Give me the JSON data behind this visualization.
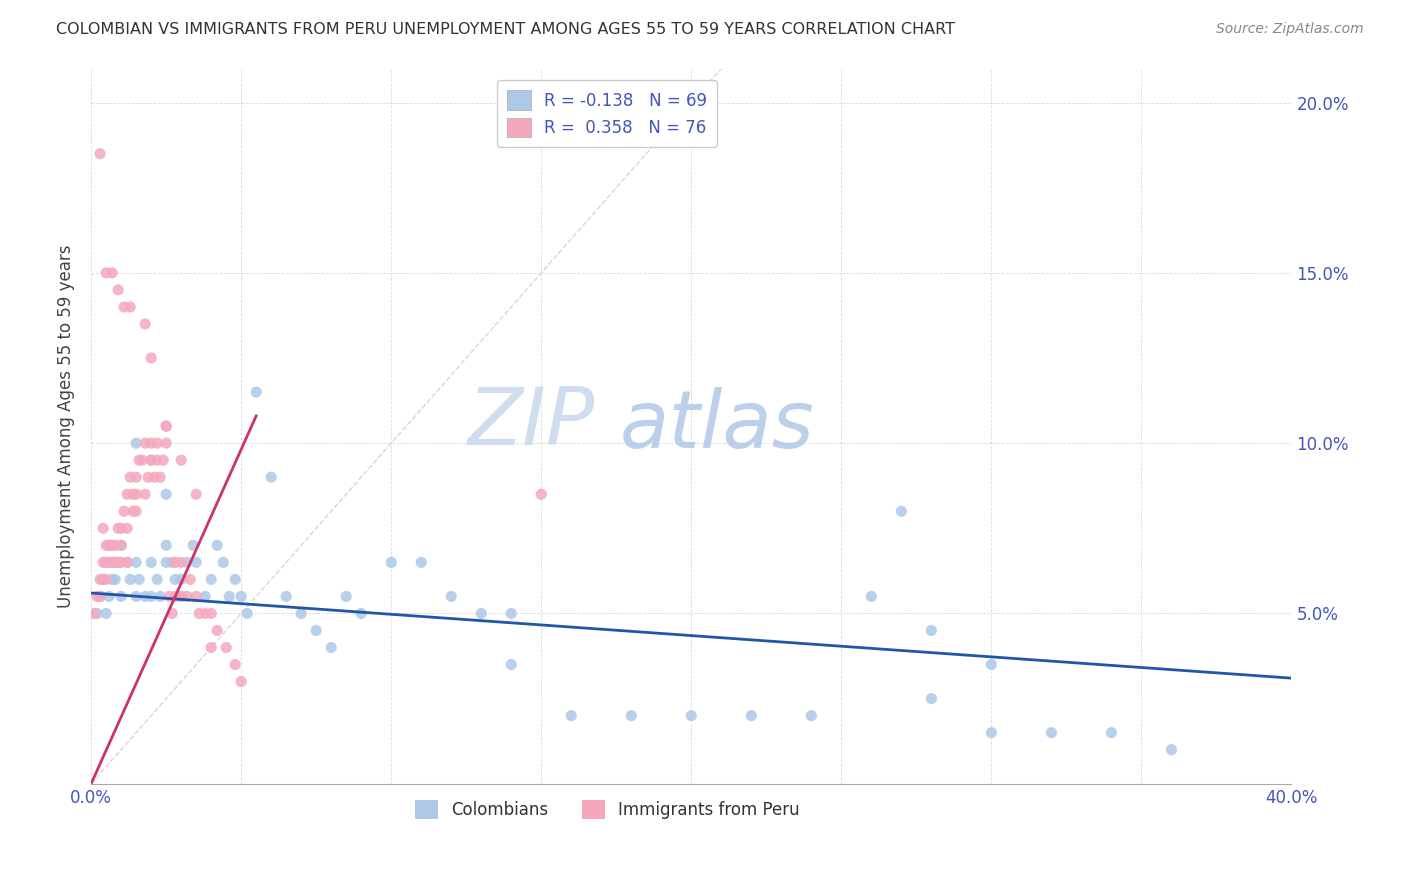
{
  "title": "COLOMBIAN VS IMMIGRANTS FROM PERU UNEMPLOYMENT AMONG AGES 55 TO 59 YEARS CORRELATION CHART",
  "source": "Source: ZipAtlas.com",
  "ylabel": "Unemployment Among Ages 55 to 59 years",
  "xlim": [
    0.0,
    0.4
  ],
  "ylim": [
    0.0,
    0.21
  ],
  "xtick_vals": [
    0.0,
    0.05,
    0.1,
    0.15,
    0.2,
    0.25,
    0.3,
    0.35,
    0.4
  ],
  "xticklabels": [
    "0.0%",
    "",
    "",
    "",
    "",
    "",
    "",
    "",
    "40.0%"
  ],
  "ytick_vals": [
    0.0,
    0.05,
    0.1,
    0.15,
    0.2
  ],
  "ytick_right_vals": [
    0.05,
    0.1,
    0.15,
    0.2
  ],
  "yticklabels_right": [
    "5.0%",
    "10.0%",
    "15.0%",
    "20.0%"
  ],
  "legend_label1": "R = -0.138   N = 69",
  "legend_label2": "R =  0.358   N = 76",
  "color_colombians": "#adc8e8",
  "color_peru": "#f5a8bc",
  "color_line_colombians": "#2255aa",
  "color_line_peru": "#cc3366",
  "color_diag": "#cccccc",
  "watermark_zip": "ZIP",
  "watermark_atlas": "atlas",
  "watermark_color_zip": "#c8d8ee",
  "watermark_color_atlas": "#b0c8e8",
  "col_line_x": [
    0.0,
    0.4
  ],
  "col_line_y": [
    0.056,
    0.031
  ],
  "peru_line_x": [
    0.0,
    0.055
  ],
  "peru_line_y": [
    0.0,
    0.108
  ],
  "col_scatter_x": [
    0.002,
    0.003,
    0.004,
    0.005,
    0.005,
    0.006,
    0.007,
    0.008,
    0.009,
    0.01,
    0.01,
    0.012,
    0.013,
    0.015,
    0.015,
    0.016,
    0.018,
    0.02,
    0.02,
    0.022,
    0.023,
    0.025,
    0.025,
    0.027,
    0.028,
    0.03,
    0.03,
    0.032,
    0.034,
    0.035,
    0.038,
    0.04,
    0.042,
    0.044,
    0.046,
    0.048,
    0.05,
    0.052,
    0.055,
    0.06,
    0.065,
    0.07,
    0.075,
    0.08,
    0.085,
    0.09,
    0.1,
    0.11,
    0.12,
    0.13,
    0.14,
    0.16,
    0.18,
    0.2,
    0.22,
    0.24,
    0.26,
    0.28,
    0.3,
    0.32,
    0.34,
    0.36,
    0.27,
    0.015,
    0.02,
    0.025,
    0.14,
    0.28,
    0.3
  ],
  "col_scatter_y": [
    0.05,
    0.055,
    0.06,
    0.065,
    0.05,
    0.055,
    0.06,
    0.06,
    0.065,
    0.055,
    0.07,
    0.065,
    0.06,
    0.055,
    0.065,
    0.06,
    0.055,
    0.055,
    0.065,
    0.06,
    0.055,
    0.065,
    0.07,
    0.065,
    0.06,
    0.06,
    0.055,
    0.065,
    0.07,
    0.065,
    0.055,
    0.06,
    0.07,
    0.065,
    0.055,
    0.06,
    0.055,
    0.05,
    0.115,
    0.09,
    0.055,
    0.05,
    0.045,
    0.04,
    0.055,
    0.05,
    0.065,
    0.065,
    0.055,
    0.05,
    0.05,
    0.02,
    0.02,
    0.02,
    0.02,
    0.02,
    0.055,
    0.045,
    0.015,
    0.015,
    0.015,
    0.01,
    0.08,
    0.1,
    0.095,
    0.085,
    0.035,
    0.025,
    0.035
  ],
  "peru_scatter_x": [
    0.001,
    0.002,
    0.003,
    0.003,
    0.004,
    0.004,
    0.005,
    0.005,
    0.005,
    0.006,
    0.006,
    0.007,
    0.007,
    0.008,
    0.008,
    0.009,
    0.009,
    0.01,
    0.01,
    0.01,
    0.011,
    0.012,
    0.012,
    0.013,
    0.014,
    0.014,
    0.015,
    0.015,
    0.015,
    0.016,
    0.017,
    0.018,
    0.018,
    0.019,
    0.02,
    0.02,
    0.021,
    0.022,
    0.022,
    0.023,
    0.024,
    0.025,
    0.025,
    0.026,
    0.027,
    0.028,
    0.028,
    0.03,
    0.03,
    0.032,
    0.033,
    0.035,
    0.036,
    0.038,
    0.04,
    0.04,
    0.042,
    0.045,
    0.048,
    0.05,
    0.003,
    0.005,
    0.007,
    0.009,
    0.011,
    0.013,
    0.018,
    0.02,
    0.025,
    0.03,
    0.035,
    0.004,
    0.006,
    0.008,
    0.012,
    0.15
  ],
  "peru_scatter_y": [
    0.05,
    0.055,
    0.055,
    0.06,
    0.06,
    0.065,
    0.065,
    0.07,
    0.06,
    0.065,
    0.07,
    0.065,
    0.07,
    0.07,
    0.065,
    0.065,
    0.075,
    0.07,
    0.075,
    0.065,
    0.08,
    0.075,
    0.085,
    0.09,
    0.08,
    0.085,
    0.08,
    0.09,
    0.085,
    0.095,
    0.095,
    0.1,
    0.085,
    0.09,
    0.095,
    0.1,
    0.09,
    0.095,
    0.1,
    0.09,
    0.095,
    0.1,
    0.105,
    0.055,
    0.05,
    0.055,
    0.065,
    0.055,
    0.065,
    0.055,
    0.06,
    0.055,
    0.05,
    0.05,
    0.04,
    0.05,
    0.045,
    0.04,
    0.035,
    0.03,
    0.185,
    0.15,
    0.15,
    0.145,
    0.14,
    0.14,
    0.135,
    0.125,
    0.105,
    0.095,
    0.085,
    0.075,
    0.07,
    0.065,
    0.065,
    0.085
  ]
}
